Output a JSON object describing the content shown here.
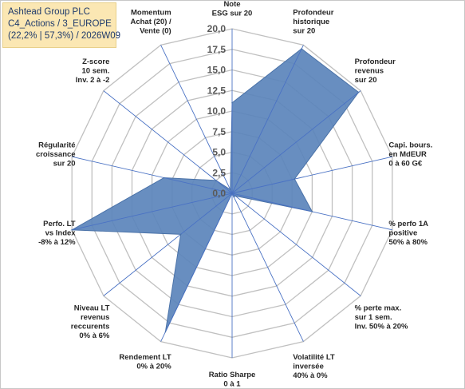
{
  "header": {
    "line1": "Ashtead Group PLC",
    "line2": "C4_Actions / 3_EUROPE",
    "line3": "(22,2% | 57,3%) / 2026W09"
  },
  "colors": {
    "fill": "#5b84bb",
    "stroke": "#4a72a8",
    "grid": "#c0c0c0",
    "spoke": "#4a72c4",
    "header_bg": "#fbe7b3",
    "header_text": "#1f3a6b"
  },
  "chart_data": {
    "type": "radar",
    "rmin": 0,
    "rmax": 20,
    "tick_step": 2.5,
    "tick_labels": [
      "0,0",
      "2,5",
      "5,0",
      "7,5",
      "10,0",
      "12,5",
      "15,0",
      "17,5",
      "20,0"
    ],
    "axes": [
      [
        "Note",
        "ESG sur 20"
      ],
      [
        "Profondeur",
        "historique",
        "sur 20"
      ],
      [
        "Profondeur",
        "revenus",
        "sur 20"
      ],
      [
        "Capi. bours.",
        "en MdEUR",
        "0 à 60 G€"
      ],
      [
        "% perfo 1A",
        "positive",
        "50% à 80%"
      ],
      [
        "% perte max.",
        "sur 1 sem.",
        "Inv. 50% à 20%"
      ],
      [
        "Volatilité LT",
        "inversée",
        "40% à 0%"
      ],
      [
        "Ratio Sharpe",
        "0 à 1"
      ],
      [
        "Rendement LT",
        "0% à 20%"
      ],
      [
        "Niveau LT",
        "revenus",
        "reccurents",
        "0% à 6%"
      ],
      [
        "Perfo. LT",
        "vs Index",
        "-8% à 12%"
      ],
      [
        "Régularité",
        "croissance",
        "sur 20"
      ],
      [
        "Z-score",
        "10 sem.",
        "Inv. 2 à -2"
      ],
      [
        "Momentum",
        "Achat (20) /",
        "Vente (0)"
      ]
    ],
    "values": [
      11,
      19.5,
      19.7,
      7.8,
      10,
      0.5,
      0.5,
      0,
      18.7,
      8,
      20,
      8.5,
      2.5,
      0.5
    ]
  }
}
